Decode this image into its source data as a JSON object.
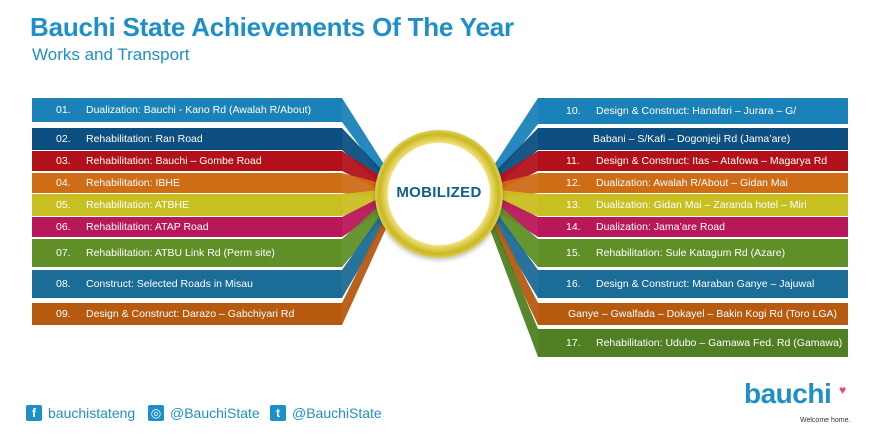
{
  "header": {
    "title": "Bauchi State Achievements Of The Year",
    "subtitle": "Works and Transport"
  },
  "hub": {
    "label": "MOBILIZED"
  },
  "left_items": [
    {
      "num": "01.",
      "text": "Dualization: Bauchi - Kano Rd (Awalah R/About)",
      "color": "#1a82b8"
    },
    {
      "num": "02.",
      "text": "Rehabilitation: Ran Road",
      "color": "#0c4f80"
    },
    {
      "num": "03.",
      "text": "Rehabilitation: Bauchi – Gombe Road",
      "color": "#b3111a"
    },
    {
      "num": "04.",
      "text": "Rehabilitation: IBHE",
      "color": "#cf6c16"
    },
    {
      "num": "05.",
      "text": "Rehabilitation: ATBHE",
      "color": "#c8bf22"
    },
    {
      "num": "06.",
      "text": "Rehabilitation: ATAP Road",
      "color": "#b8175a"
    },
    {
      "num": "07.",
      "text": "Rehabilitation: ATBU Link Rd (Perm site)",
      "color": "#5f8f26"
    },
    {
      "num": "08.",
      "text": "Construct: Selected Roads in Misau",
      "color": "#1b6c97"
    },
    {
      "num": "09.",
      "text": "Design & Construct: Darazo – Gabchiyari Rd",
      "color": "#b65a10"
    }
  ],
  "right_items": [
    {
      "num": "10.",
      "text": "Design & Construct: Hanafari – Jurara – G/",
      "color": "#1a82b8"
    },
    {
      "num": "",
      "text": "Babani – S/Kafi – Dogonjeji Rd (Jama’are)",
      "color": "#0c4f80"
    },
    {
      "num": "11.",
      "text": "Design & Construct: Itas – Atafowa – Magarya Rd",
      "color": "#b3111a"
    },
    {
      "num": "12.",
      "text": "Dualization: Awalah R/About – Gidan Mai",
      "color": "#cf6c16"
    },
    {
      "num": "13.",
      "text": "Dualization: Gidan Mai – Zaranda hotel – Miri",
      "color": "#c8bf22"
    },
    {
      "num": "14.",
      "text": "Dualization: Jama’are Road",
      "color": "#b8175a"
    },
    {
      "num": "15.",
      "text": "Rehabilitation: Sule Katagum Rd (Azare)",
      "color": "#5f8f26"
    },
    {
      "num": "16.",
      "text": "Design & Construct: Maraban Ganye – Jajuwal",
      "color": "#1b6c97"
    },
    {
      "num": "",
      "text": "Ganye – Gwalfada – Dokayel – Bakin Kogi Rd (Toro LGA)",
      "color": "#b65a10"
    },
    {
      "num": "17.",
      "text": "Rehabilitation: Udubo – Gamawa Fed. Rd (Gamawa)",
      "color": "#4f7f22"
    }
  ],
  "footer": {
    "facebook": {
      "icon": "facebook-icon",
      "text": "bauchistateng"
    },
    "instagram": {
      "icon": "instagram-icon",
      "text": "@BauchiState"
    },
    "twitter": {
      "icon": "twitter-icon",
      "text": "@BauchiState"
    },
    "brand": "bauchi",
    "tagline": "Welcome home."
  }
}
